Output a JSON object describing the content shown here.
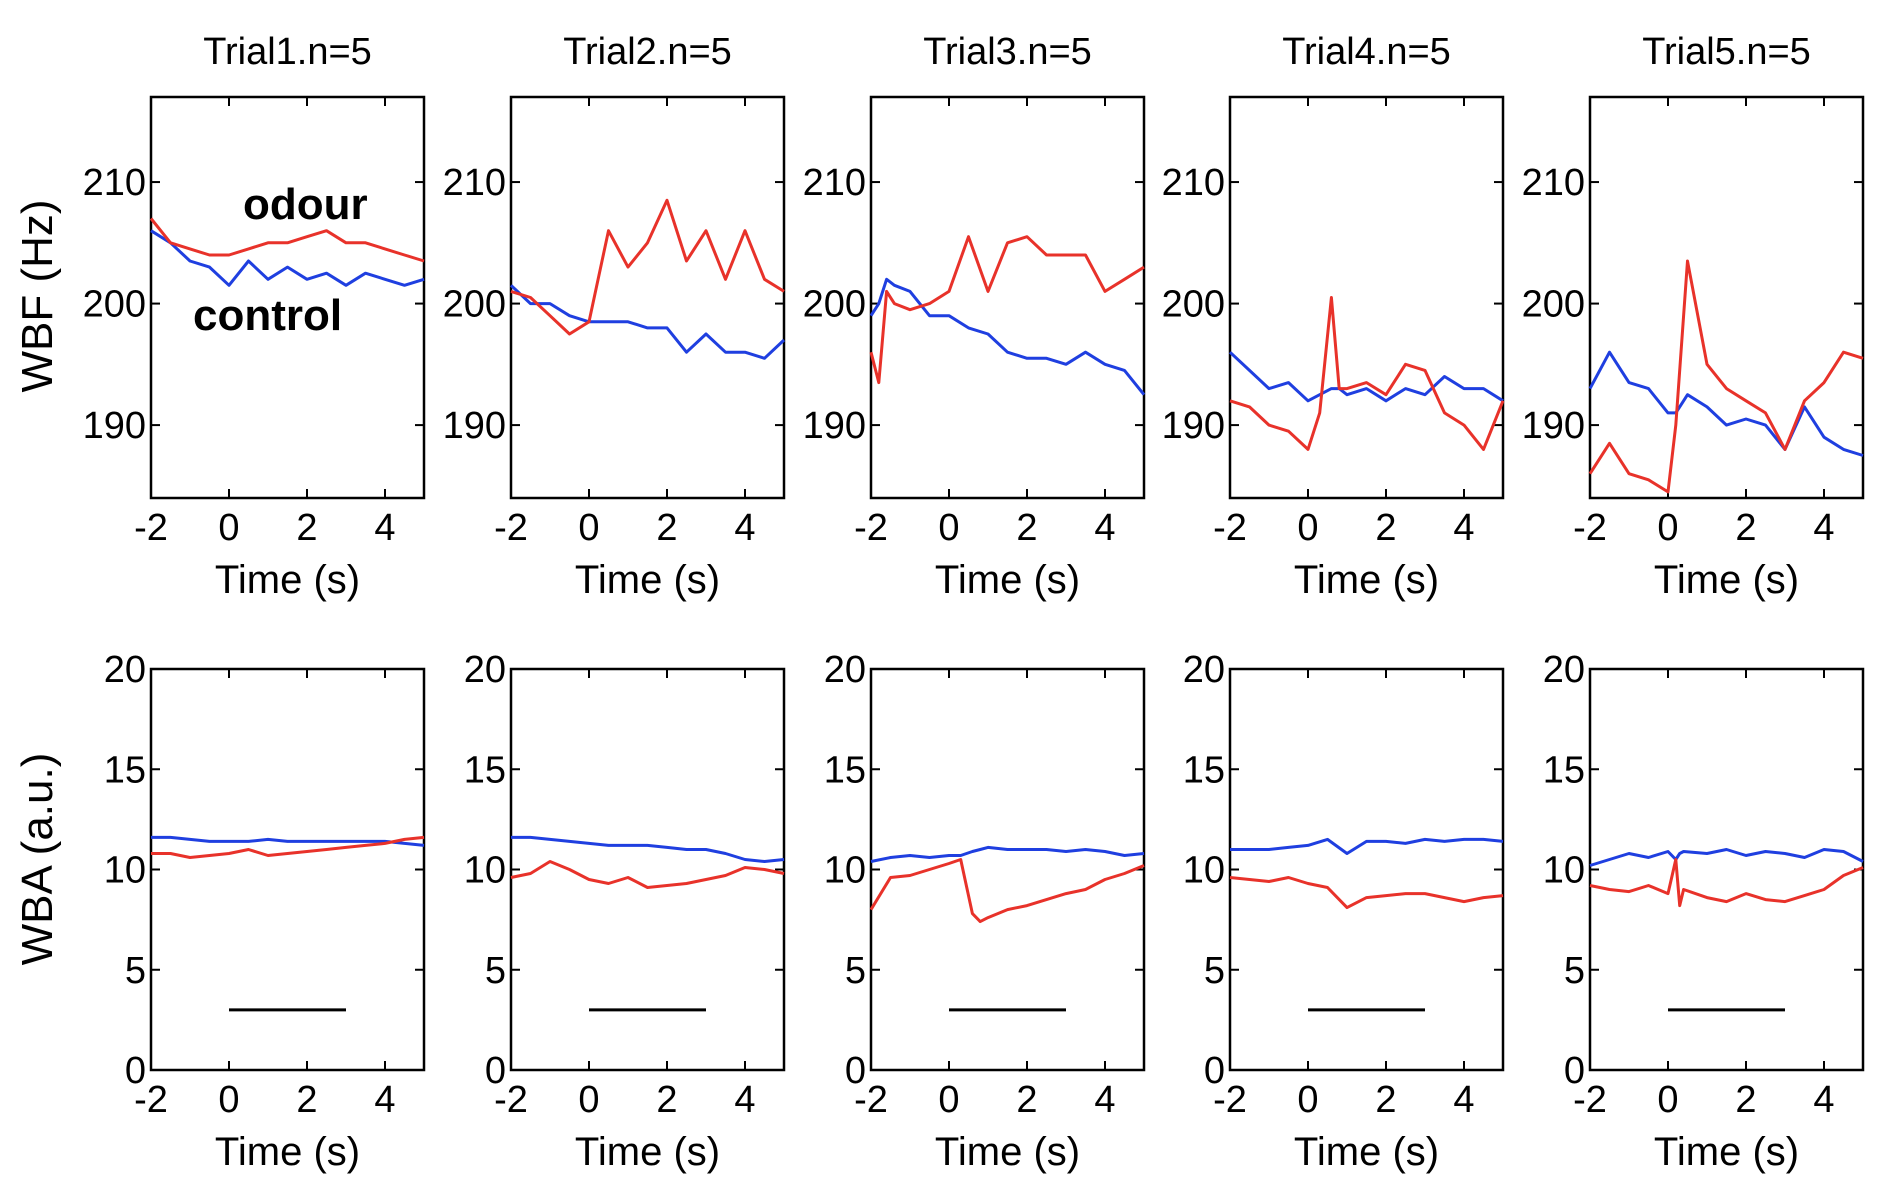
{
  "colors": {
    "odour": "#e8322a",
    "control": "#1f3fe0",
    "legend_control": "#1a47b8"
  },
  "figure": {
    "row_labels": [
      "WBF (Hz)",
      "WBA (a.u.)"
    ],
    "legend": {
      "odour": "odour",
      "control": "control"
    }
  },
  "chart_data": [
    {
      "type": "line",
      "title": "Trial1.n=5",
      "xlabel": "Time (s)",
      "ylabel": "WBF (Hz)",
      "xlim": [
        -2,
        5
      ],
      "ylim": [
        184,
        217
      ],
      "xticks": [
        -2,
        0,
        2,
        4
      ],
      "yticks": [
        190,
        200,
        210
      ],
      "x": [
        -2,
        -1.5,
        -1,
        -0.5,
        0,
        0.5,
        1,
        1.5,
        2,
        2.5,
        3,
        3.5,
        4,
        4.5,
        5
      ],
      "series": [
        {
          "name": "odour",
          "values": [
            207,
            205,
            204.5,
            204,
            204,
            204.5,
            205,
            205,
            205.5,
            206,
            205,
            205,
            204.5,
            204,
            203.5
          ]
        },
        {
          "name": "control",
          "values": [
            206,
            205,
            203.5,
            203,
            201.5,
            203.5,
            202,
            203,
            202,
            202.5,
            201.5,
            202.5,
            202,
            201.5,
            202
          ]
        }
      ]
    },
    {
      "type": "line",
      "title": "Trial2.n=5",
      "xlabel": "Time (s)",
      "ylabel": "WBF (Hz)",
      "xlim": [
        -2,
        5
      ],
      "ylim": [
        184,
        217
      ],
      "xticks": [
        -2,
        0,
        2,
        4
      ],
      "yticks": [
        190,
        200,
        210
      ],
      "x": [
        -2,
        -1.5,
        -1,
        -0.5,
        0,
        0.5,
        1,
        1.5,
        2,
        2.5,
        3,
        3.5,
        4,
        4.5,
        5
      ],
      "series": [
        {
          "name": "odour",
          "values": [
            201,
            200.5,
            199,
            197.5,
            198.5,
            206,
            203,
            205,
            208.5,
            203.5,
            206,
            202,
            206,
            202,
            201
          ]
        },
        {
          "name": "control",
          "values": [
            201.5,
            200,
            200,
            199,
            198.5,
            198.5,
            198.5,
            198,
            198,
            196,
            197.5,
            196,
            196,
            195.5,
            197
          ]
        }
      ]
    },
    {
      "type": "line",
      "title": "Trial3.n=5",
      "xlabel": "Time (s)",
      "ylabel": "WBF (Hz)",
      "xlim": [
        -2,
        5
      ],
      "ylim": [
        184,
        217
      ],
      "xticks": [
        -2,
        0,
        2,
        4
      ],
      "yticks": [
        190,
        200,
        210
      ],
      "x": [
        -2,
        -1.8,
        -1.6,
        -1.4,
        -1,
        -0.5,
        0,
        0.5,
        1,
        1.5,
        2,
        2.5,
        3,
        3.5,
        4,
        4.5,
        5
      ],
      "series": [
        {
          "name": "odour",
          "values": [
            196,
            193.5,
            201,
            200,
            199.5,
            200,
            201,
            205.5,
            201,
            205,
            205.5,
            204,
            204,
            204,
            201,
            202,
            203
          ]
        },
        {
          "name": "control",
          "values": [
            199,
            200,
            202,
            201.5,
            201,
            199,
            199,
            198,
            197.5,
            196,
            195.5,
            195.5,
            195,
            196,
            195,
            194.5,
            192.5
          ]
        }
      ]
    },
    {
      "type": "line",
      "title": "Trial4.n=5",
      "xlabel": "Time (s)",
      "ylabel": "WBF (Hz)",
      "xlim": [
        -2,
        5
      ],
      "ylim": [
        184,
        217
      ],
      "xticks": [
        -2,
        0,
        2,
        4
      ],
      "yticks": [
        190,
        200,
        210
      ],
      "x": [
        -2,
        -1.5,
        -1,
        -0.5,
        0,
        0.3,
        0.6,
        0.8,
        1,
        1.5,
        2,
        2.5,
        3,
        3.5,
        4,
        4.5,
        5
      ],
      "series": [
        {
          "name": "odour",
          "values": [
            192,
            191.5,
            190,
            189.5,
            188,
            191,
            200.5,
            193,
            193,
            193.5,
            192.5,
            195,
            194.5,
            191,
            190,
            188,
            192
          ]
        },
        {
          "name": "control",
          "values": [
            196,
            194.5,
            193,
            193.5,
            192,
            192.5,
            193,
            193,
            192.5,
            193,
            192,
            193,
            192.5,
            194,
            193,
            193,
            192
          ]
        }
      ]
    },
    {
      "type": "line",
      "title": "Trial5.n=5",
      "xlabel": "Time (s)",
      "ylabel": "WBF (Hz)",
      "xlim": [
        -2,
        5
      ],
      "ylim": [
        184,
        217
      ],
      "xticks": [
        -2,
        0,
        2,
        4
      ],
      "yticks": [
        190,
        200,
        210
      ],
      "x": [
        -2,
        -1.5,
        -1,
        -0.5,
        0,
        0.2,
        0.4,
        0.5,
        1,
        1.5,
        2,
        2.5,
        3,
        3.5,
        4,
        4.5,
        5
      ],
      "series": [
        {
          "name": "odour",
          "values": [
            186,
            188.5,
            186,
            185.5,
            184.5,
            190,
            199,
            203.5,
            195,
            193,
            192,
            191,
            188,
            192,
            193.5,
            196,
            195.5
          ]
        },
        {
          "name": "control",
          "values": [
            193,
            196,
            193.5,
            193,
            191,
            191,
            192,
            192.5,
            191.5,
            190,
            190.5,
            190,
            188,
            191.5,
            189,
            188,
            187.5
          ]
        }
      ]
    },
    {
      "type": "line",
      "title": "",
      "xlabel": "Time (s)",
      "ylabel": "WBA (a.u.)",
      "xlim": [
        -2,
        5
      ],
      "ylim": [
        0,
        20
      ],
      "xticks": [
        -2,
        0,
        2,
        4
      ],
      "yticks": [
        0,
        5,
        10,
        15,
        20
      ],
      "x": [
        -2,
        -1.5,
        -1,
        -0.5,
        0,
        0.5,
        1,
        1.5,
        2,
        2.5,
        3,
        3.5,
        4,
        4.5,
        5
      ],
      "series": [
        {
          "name": "odour",
          "values": [
            10.8,
            10.8,
            10.6,
            10.7,
            10.8,
            11,
            10.7,
            10.8,
            10.9,
            11,
            11.1,
            11.2,
            11.3,
            11.5,
            11.6
          ]
        },
        {
          "name": "control",
          "values": [
            11.6,
            11.6,
            11.5,
            11.4,
            11.4,
            11.4,
            11.5,
            11.4,
            11.4,
            11.4,
            11.4,
            11.4,
            11.4,
            11.3,
            11.2
          ]
        }
      ],
      "stimulus_bar": {
        "x": [
          0,
          3
        ],
        "y": 3
      }
    },
    {
      "type": "line",
      "title": "",
      "xlabel": "Time (s)",
      "ylabel": "WBA (a.u.)",
      "xlim": [
        -2,
        5
      ],
      "ylim": [
        0,
        20
      ],
      "xticks": [
        -2,
        0,
        2,
        4
      ],
      "yticks": [
        0,
        5,
        10,
        15,
        20
      ],
      "x": [
        -2,
        -1.5,
        -1,
        -0.5,
        0,
        0.5,
        1,
        1.5,
        2,
        2.5,
        3,
        3.5,
        4,
        4.5,
        5
      ],
      "series": [
        {
          "name": "odour",
          "values": [
            9.6,
            9.8,
            10.4,
            10,
            9.5,
            9.3,
            9.6,
            9.1,
            9.2,
            9.3,
            9.5,
            9.7,
            10.1,
            10,
            9.8
          ]
        },
        {
          "name": "control",
          "values": [
            11.6,
            11.6,
            11.5,
            11.4,
            11.3,
            11.2,
            11.2,
            11.2,
            11.1,
            11,
            11,
            10.8,
            10.5,
            10.4,
            10.5
          ]
        }
      ],
      "stimulus_bar": {
        "x": [
          0,
          3
        ],
        "y": 3
      }
    },
    {
      "type": "line",
      "title": "",
      "xlabel": "Time (s)",
      "ylabel": "WBA (a.u.)",
      "xlim": [
        -2,
        5
      ],
      "ylim": [
        0,
        20
      ],
      "xticks": [
        -2,
        0,
        2,
        4
      ],
      "yticks": [
        0,
        5,
        10,
        15,
        20
      ],
      "x": [
        -2,
        -1.5,
        -1,
        -0.5,
        0,
        0.3,
        0.6,
        0.8,
        1,
        1.5,
        2,
        2.5,
        3,
        3.5,
        4,
        4.5,
        5
      ],
      "series": [
        {
          "name": "odour",
          "values": [
            8,
            9.6,
            9.7,
            10,
            10.3,
            10.5,
            7.8,
            7.4,
            7.6,
            8,
            8.2,
            8.5,
            8.8,
            9,
            9.5,
            9.8,
            10.2
          ]
        },
        {
          "name": "control",
          "values": [
            10.4,
            10.6,
            10.7,
            10.6,
            10.7,
            10.7,
            10.9,
            11,
            11.1,
            11,
            11,
            11,
            10.9,
            11,
            10.9,
            10.7,
            10.8
          ]
        }
      ],
      "stimulus_bar": {
        "x": [
          0,
          3
        ],
        "y": 3
      }
    },
    {
      "type": "line",
      "title": "",
      "xlabel": "Time (s)",
      "ylabel": "WBA (a.u.)",
      "xlim": [
        -2,
        5
      ],
      "ylim": [
        0,
        20
      ],
      "xticks": [
        -2,
        0,
        2,
        4
      ],
      "yticks": [
        0,
        5,
        10,
        15,
        20
      ],
      "x": [
        -2,
        -1.5,
        -1,
        -0.5,
        0,
        0.5,
        1,
        1.5,
        2,
        2.5,
        3,
        3.5,
        4,
        4.5,
        5
      ],
      "series": [
        {
          "name": "odour",
          "values": [
            9.6,
            9.5,
            9.4,
            9.6,
            9.3,
            9.1,
            8.1,
            8.6,
            8.7,
            8.8,
            8.8,
            8.6,
            8.4,
            8.6,
            8.7
          ]
        },
        {
          "name": "control",
          "values": [
            11,
            11,
            11,
            11.1,
            11.2,
            11.5,
            10.8,
            11.4,
            11.4,
            11.3,
            11.5,
            11.4,
            11.5,
            11.5,
            11.4
          ]
        }
      ],
      "stimulus_bar": {
        "x": [
          0,
          3
        ],
        "y": 3
      }
    },
    {
      "type": "line",
      "title": "",
      "xlabel": "Time (s)",
      "ylabel": "WBA (a.u.)",
      "xlim": [
        -2,
        5
      ],
      "ylim": [
        0,
        20
      ],
      "xticks": [
        -2,
        0,
        2,
        4
      ],
      "yticks": [
        0,
        5,
        10,
        15,
        20
      ],
      "x": [
        -2,
        -1.5,
        -1,
        -0.5,
        0,
        0.2,
        0.3,
        0.4,
        1,
        1.5,
        2,
        2.5,
        3,
        3.5,
        4,
        4.5,
        5
      ],
      "series": [
        {
          "name": "odour",
          "values": [
            9.2,
            9,
            8.9,
            9.2,
            8.8,
            10.5,
            8.2,
            9,
            8.6,
            8.4,
            8.8,
            8.5,
            8.4,
            8.7,
            9,
            9.7,
            10.1
          ]
        },
        {
          "name": "control",
          "values": [
            10.2,
            10.5,
            10.8,
            10.6,
            10.9,
            10.5,
            10.8,
            10.9,
            10.8,
            11,
            10.7,
            10.9,
            10.8,
            10.6,
            11,
            10.9,
            10.4
          ]
        }
      ],
      "stimulus_bar": {
        "x": [
          0,
          3
        ],
        "y": 3
      }
    }
  ]
}
